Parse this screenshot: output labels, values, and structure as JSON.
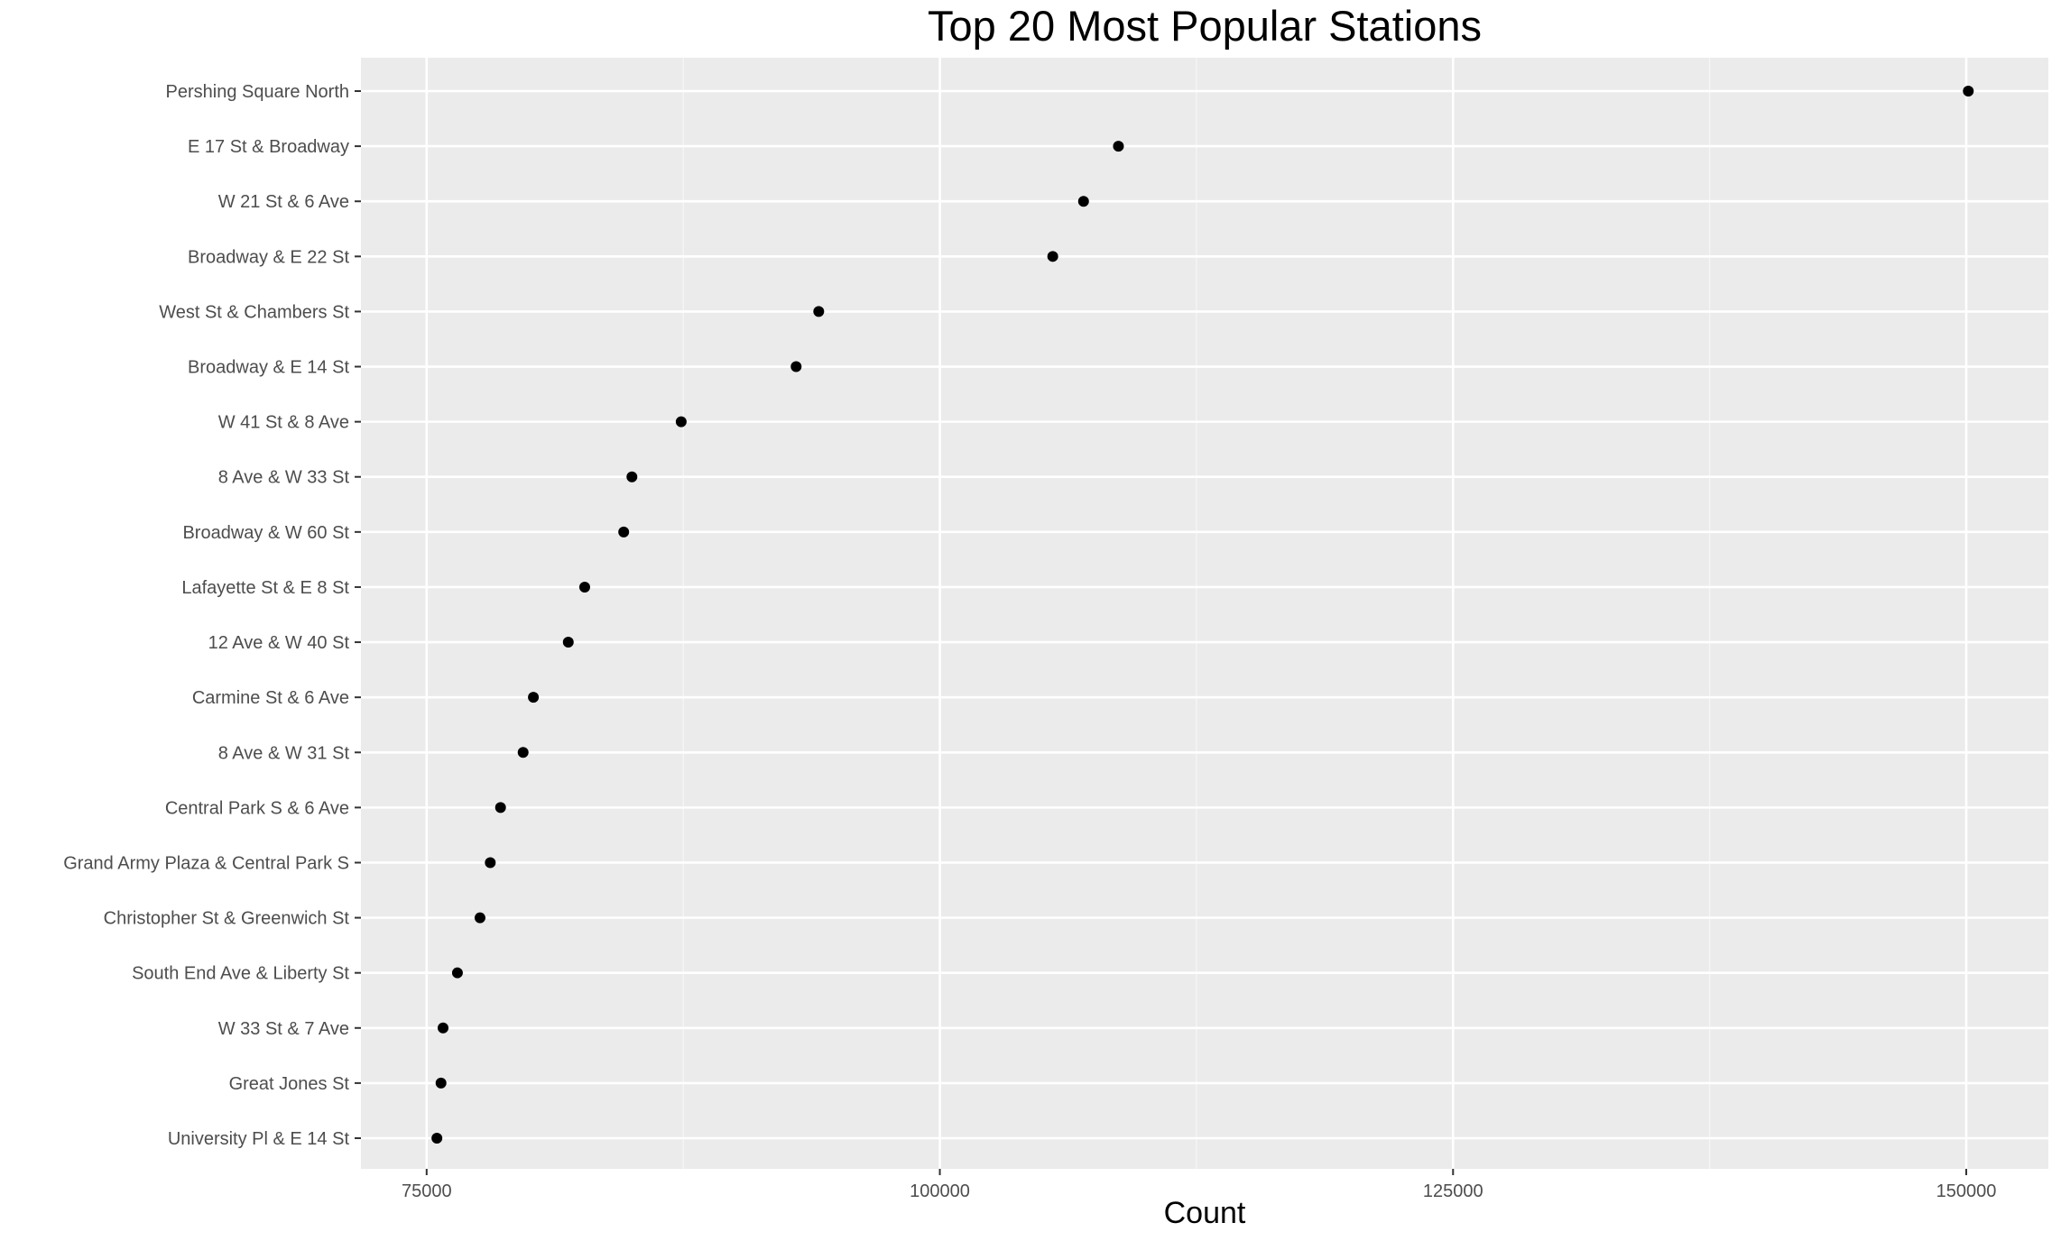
{
  "chart_data": {
    "type": "scatter",
    "title": "Top 20 Most Popular Stations",
    "xlabel": "Count",
    "ylabel": "",
    "xlim": [
      71800,
      154000
    ],
    "x_ticks": [
      75000,
      100000,
      125000,
      150000
    ],
    "x_tick_labels": [
      "75000",
      "100000",
      "125000",
      "150000"
    ],
    "grid": true,
    "legend": "none",
    "colors": {
      "panel_background": "#ebebeb",
      "grid_major": "#ffffff",
      "grid_minor": "#f5f5f5",
      "point": "#000000",
      "tick_label": "#4d4d4d"
    },
    "categories": [
      "Pershing Square North",
      "E 17 St & Broadway",
      "W 21 St & 6 Ave",
      "Broadway & E 22 St",
      "West St & Chambers St",
      "Broadway & E 14 St",
      "W 41 St & 8 Ave",
      "8 Ave & W 33 St",
      "Broadway & W 60 St",
      "Lafayette St & E 8 St",
      "12 Ave & W 40 St",
      "Carmine St & 6 Ave",
      "8 Ave & W 31 St",
      "Central Park S & 6 Ave",
      "Grand Army Plaza & Central Park S",
      "Christopher St & Greenwich St",
      "South End Ave & Liberty St",
      "W 33 St & 7 Ave",
      "Great Jones St",
      "University Pl & E 14 St"
    ],
    "values": [
      150100,
      108700,
      107000,
      105500,
      94100,
      93000,
      87400,
      85000,
      84600,
      82700,
      81900,
      80200,
      79700,
      78600,
      78100,
      77600,
      76500,
      75800,
      75700,
      75500
    ]
  }
}
